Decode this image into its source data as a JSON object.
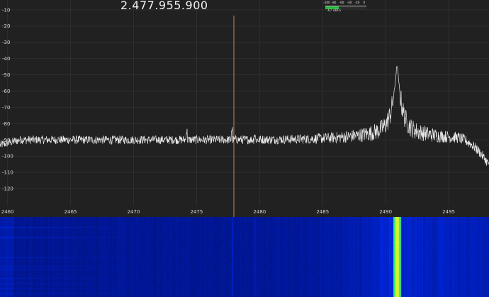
{
  "frequency_display": "2.477.955.900",
  "level_meter": {
    "tick_labels": [
      "-100",
      "-80",
      "-60",
      "-40",
      "-20",
      "0"
    ],
    "readout": "-67 dBFS",
    "level_dbfs": -67,
    "range_dbfs": [
      -100,
      0
    ]
  },
  "colors": {
    "background": "#212121",
    "trace": "#e8e8e8",
    "tuning_line": "#ff9a6e",
    "meter_fill": "#25b838",
    "waterfall_base": "#001a7a",
    "waterfall_peak": "#f4ff2e"
  },
  "spectrum": {
    "y_axis_labels": [
      "-10",
      "-20",
      "-30",
      "-40",
      "-50",
      "-60",
      "-70",
      "-80",
      "-90",
      "-100",
      "-110",
      "-120"
    ],
    "x_axis_labels": [
      "2460",
      "2465",
      "2470",
      "2475",
      "2480",
      "2485",
      "2490",
      "2495"
    ],
    "x_range_mhz": [
      2459.4,
      2498.2
    ],
    "y_range_db": [
      -4,
      -130
    ],
    "tuned_frequency_mhz": 2477.9559,
    "noise_floor_db": -90,
    "peak": {
      "frequency_mhz": 2490.9,
      "level_db": -45
    }
  }
}
